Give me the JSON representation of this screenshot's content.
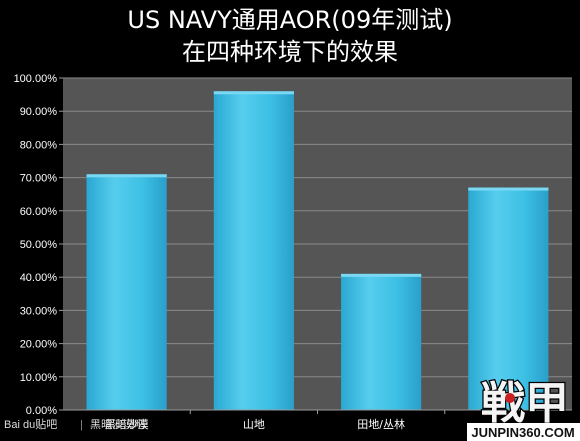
{
  "chart_data": {
    "type": "bar",
    "title_lines": [
      "US NAVY通用AOR(09年测试)",
      "在四种环境下的效果"
    ],
    "categories": [
      "黑暗沙漠",
      "山地",
      "田地/丛林",
      ""
    ],
    "values": [
      71,
      96,
      41,
      67
    ],
    "ylim": [
      0,
      100
    ],
    "yticks": [
      "0.00%",
      "10.00%",
      "20.00%",
      "30.00%",
      "40.00%",
      "50.00%",
      "60.00%",
      "70.00%",
      "80.00%",
      "90.00%",
      "100.00%"
    ],
    "grid": true,
    "legend": "none",
    "colors": {
      "background": "#000000",
      "plot_background": "#555555",
      "bar": "#3cc0e4",
      "bar_highlight": "#7ad8f2",
      "grid": "#8a8a8a"
    }
  },
  "watermarks": {
    "baidu": "Bai du贴吧",
    "baidu_tieba_name": "黑暗沙漠吧",
    "logo_glyphs": "戦甲",
    "site": "JUNPIN360.COM"
  }
}
